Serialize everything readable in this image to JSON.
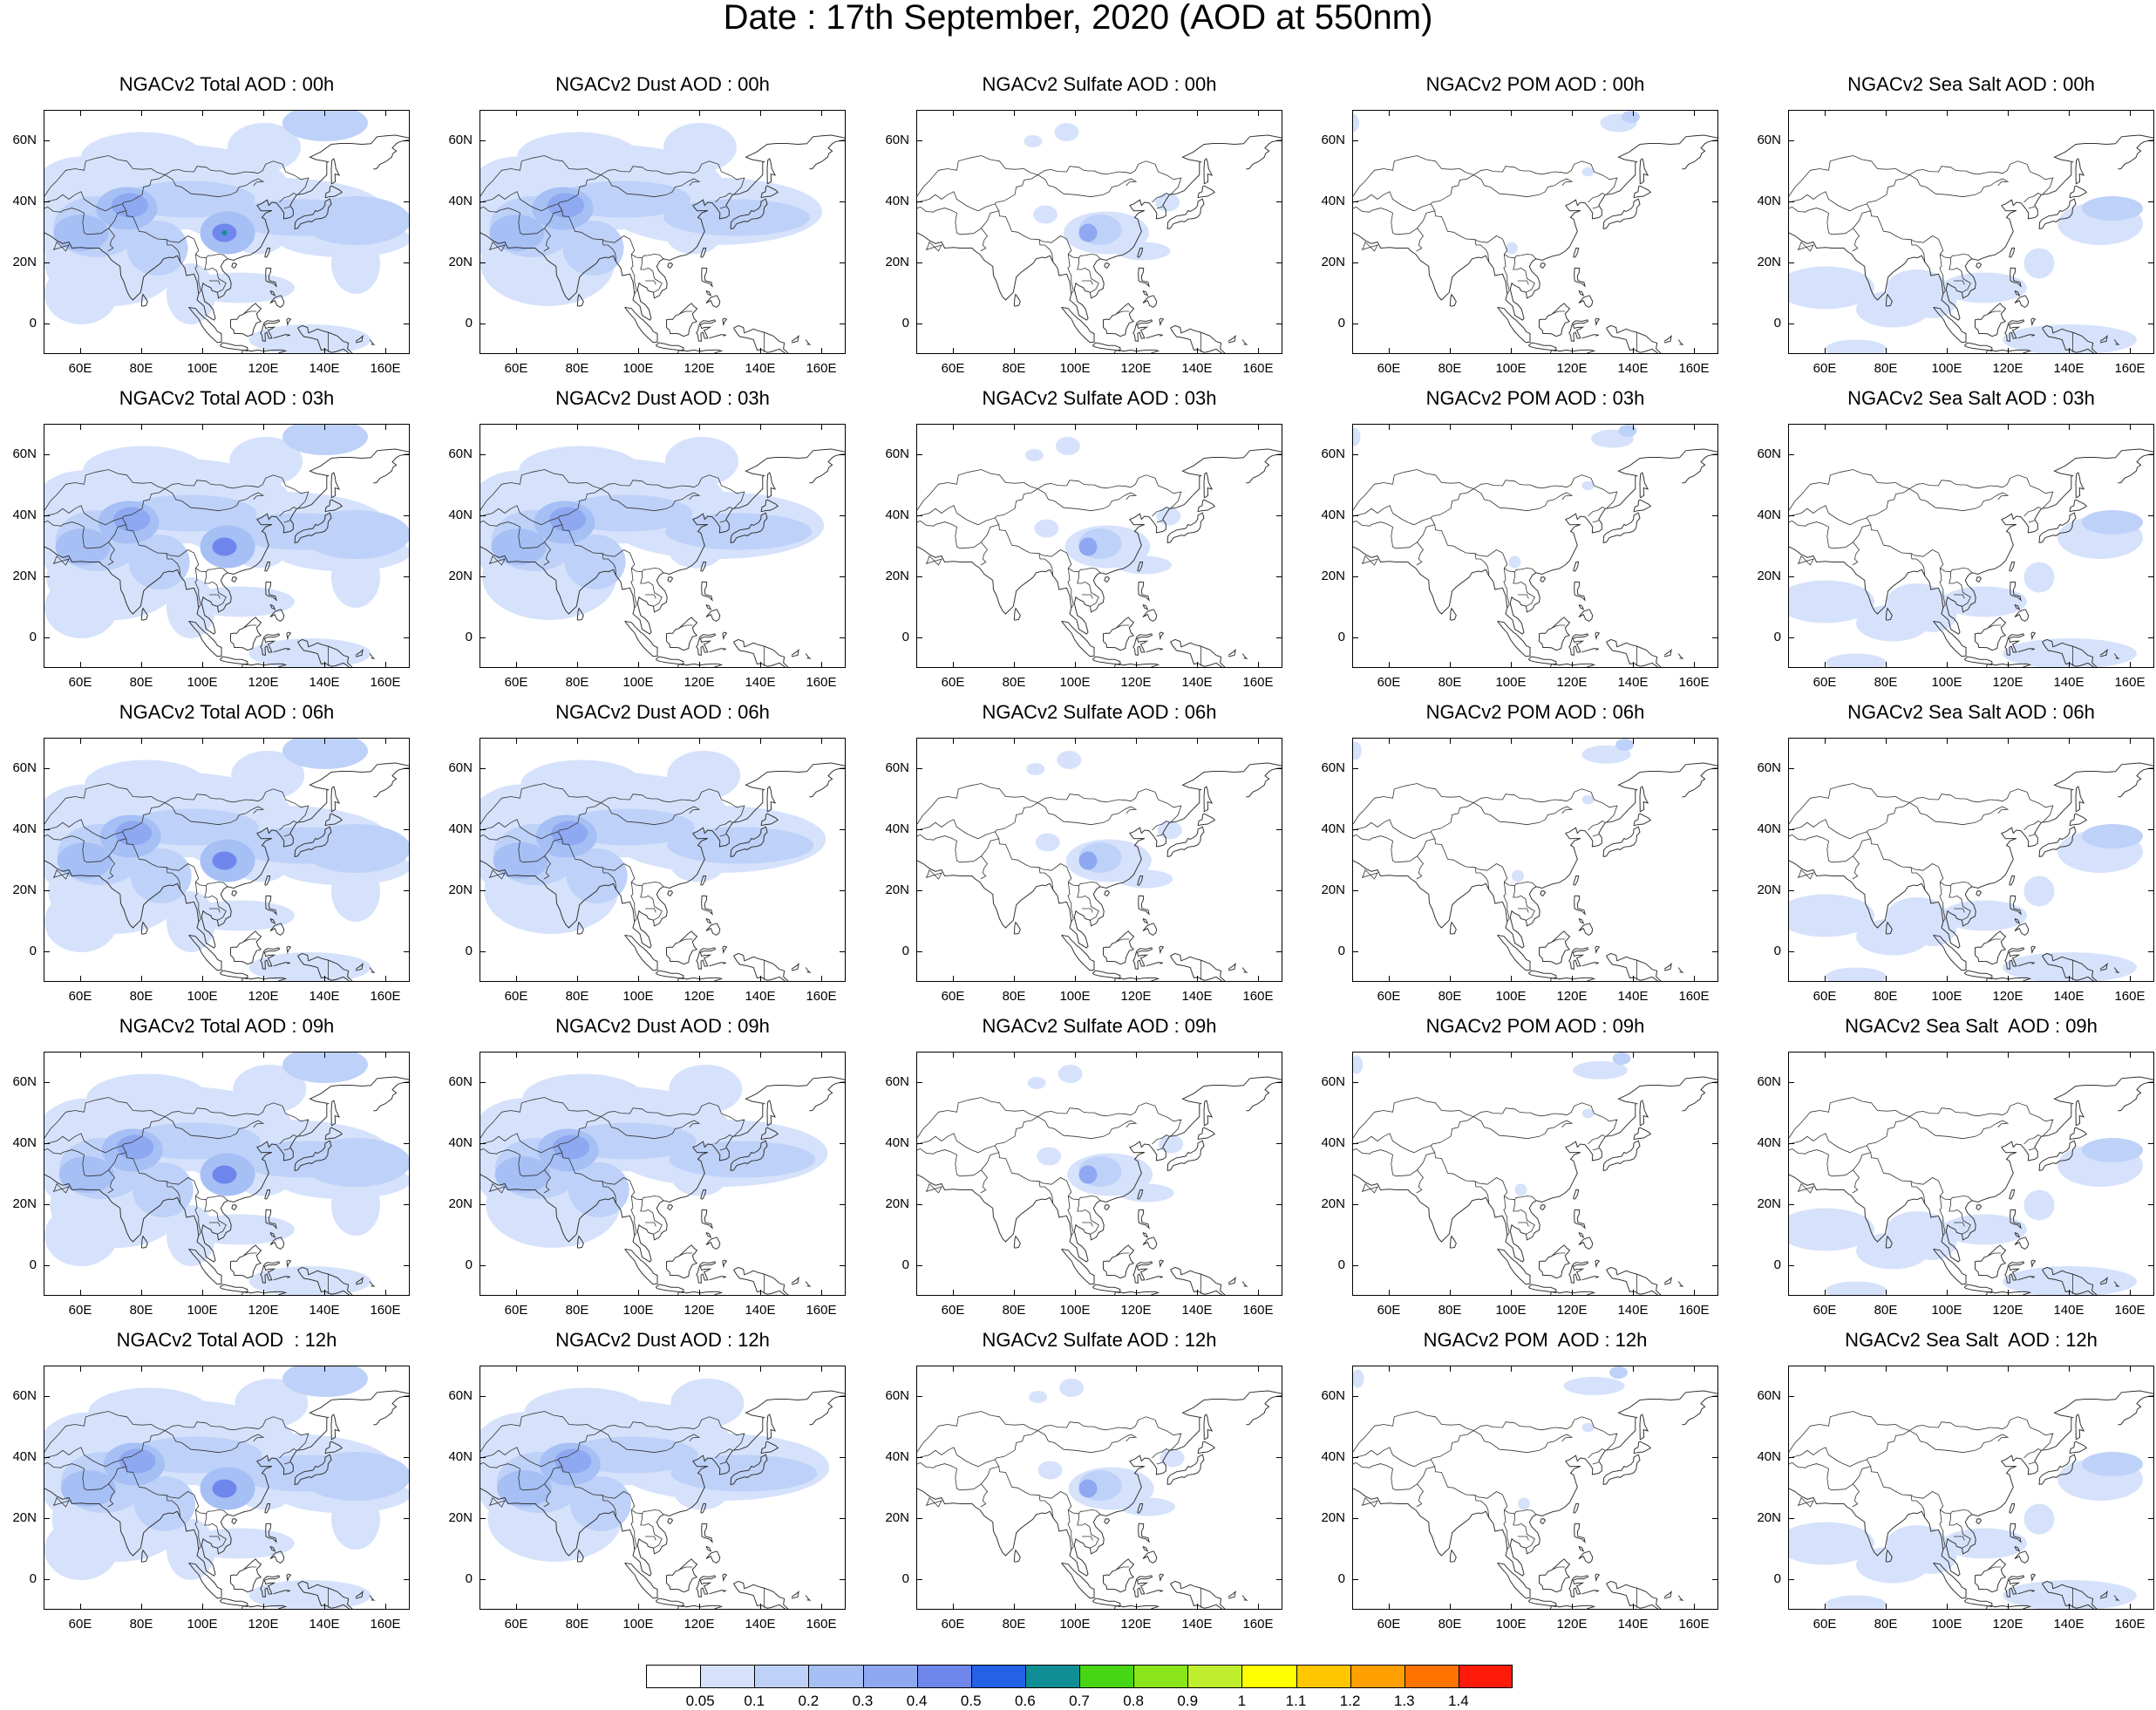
{
  "title": "Date : 17th September, 2020 (AOD at 550nm)",
  "panel_titles": [
    [
      "NGACv2 Total AOD : 00h",
      "NGACv2 Dust AOD : 00h",
      "NGACv2 Sulfate AOD : 00h",
      "NGACv2 POM AOD : 00h",
      "NGACv2 Sea Salt AOD : 00h"
    ],
    [
      "NGACv2 Total AOD : 03h",
      "NGACv2 Dust AOD : 03h",
      "NGACv2 Sulfate AOD : 03h",
      "NGACv2 POM AOD : 03h",
      "NGACv2 Sea Salt AOD : 03h"
    ],
    [
      "NGACv2 Total AOD : 06h",
      "NGACv2 Dust AOD : 06h",
      "NGACv2 Sulfate AOD : 06h",
      "NGACv2 POM AOD : 06h",
      "NGACv2 Sea Salt AOD : 06h"
    ],
    [
      "NGACv2 Total AOD : 09h",
      "NGACv2 Dust AOD : 09h",
      "NGACv2 Sulfate AOD : 09h",
      "NGACv2 POM AOD : 09h",
      "NGACv2 Sea Salt  AOD : 09h"
    ],
    [
      "NGACv2 Total AOD  : 12h",
      "NGACv2 Dust AOD : 12h",
      "NGACv2 Sulfate AOD : 12h",
      "NGACv2 POM  AOD : 12h",
      "NGACv2 Sea Salt  AOD : 12h"
    ]
  ],
  "axes": {
    "x_ticks": [
      "60E",
      "80E",
      "100E",
      "120E",
      "140E",
      "160E"
    ],
    "x_values": [
      60,
      80,
      100,
      120,
      140,
      160
    ],
    "y_ticks": [
      "60N",
      "40N",
      "20N",
      "0"
    ],
    "y_values": [
      60,
      40,
      20,
      0
    ],
    "lon_range": [
      48,
      168
    ],
    "lat_range": [
      -10,
      70
    ]
  },
  "colorbar": {
    "labels": [
      "0.05",
      "0.1",
      "0.2",
      "0.3",
      "0.4",
      "0.5",
      "0.6",
      "0.7",
      "0.8",
      "0.9",
      "1",
      "1.1",
      "1.2",
      "1.3",
      "1.4"
    ],
    "colors": [
      "#ffffff",
      "#d6e2fb",
      "#bed1f8",
      "#a6bff5",
      "#8ea8f1",
      "#6f87ec",
      "#2361e6",
      "#0f8f95",
      "#47d613",
      "#8ae51a",
      "#bfef2c",
      "#ffff00",
      "#ffc600",
      "#ff9f00",
      "#ff7300",
      "#ff1a0a"
    ]
  },
  "chart_data": {
    "type": "heatmap",
    "title": "Date : 17th September, 2020 (AOD at 550nm)",
    "variable": "AOD at 550nm",
    "species": [
      "Total",
      "Dust",
      "Sulfate",
      "POM",
      "Sea Salt"
    ],
    "forecast_hours": [
      "00h",
      "03h",
      "06h",
      "09h",
      "12h"
    ],
    "lon_range": [
      48,
      168
    ],
    "lat_range": [
      -10,
      70
    ],
    "levels": [
      0.05,
      0.1,
      0.2,
      0.3,
      0.4,
      0.5,
      0.6,
      0.7,
      0.8,
      0.9,
      1,
      1.1,
      1.2,
      1.3,
      1.4
    ],
    "approx_max_aod": {
      "Total": [
        0.5,
        0.4,
        0.4,
        0.4,
        0.4
      ],
      "Dust": [
        0.4,
        0.4,
        0.4,
        0.4,
        0.4
      ],
      "Sulfate": [
        0.3,
        0.3,
        0.3,
        0.3,
        0.3
      ],
      "POM": [
        0.3,
        0.2,
        0.2,
        0.2,
        0.2
      ],
      "Sea Salt": [
        0.2,
        0.2,
        0.2,
        0.2,
        0.2
      ]
    }
  }
}
